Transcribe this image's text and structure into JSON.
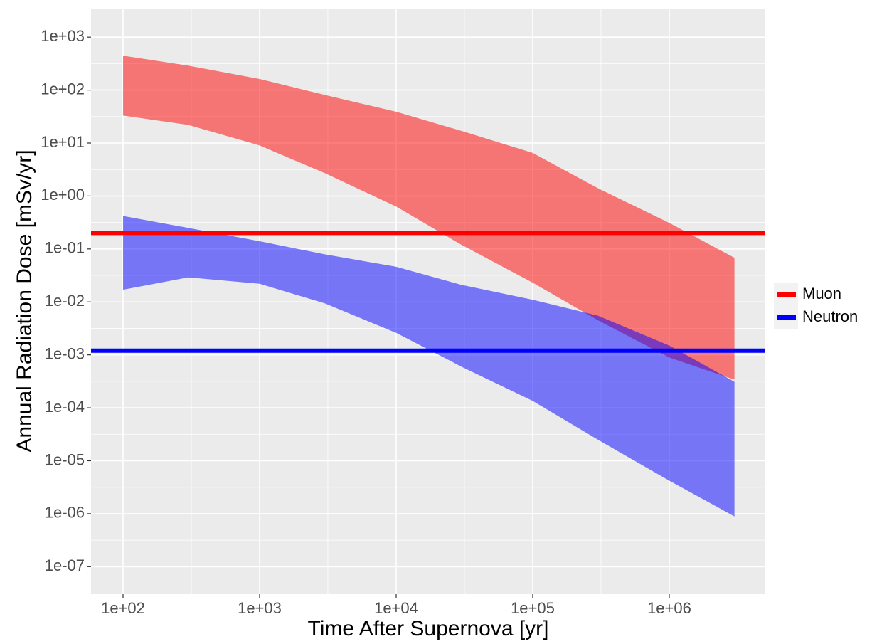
{
  "chart_data": {
    "type": "ribbon",
    "x_label": "Time After Supernova [yr]",
    "y_label": "Annual Radiation Dose [mSv/yr]",
    "x": [
      100,
      300,
      1000,
      3000,
      10000,
      30000,
      100000,
      300000,
      1000000,
      3000000
    ],
    "series": [
      {
        "name": "Muon",
        "color": "#ff0000",
        "lower": [
          33,
          22,
          9,
          2.7,
          0.63,
          0.12,
          0.023,
          0.0045,
          0.00089,
          0.00034
        ],
        "upper": [
          447,
          290,
          162,
          81,
          39,
          17,
          6.5,
          1.4,
          0.31,
          0.068
        ],
        "hline": 0.2
      },
      {
        "name": "Neutron",
        "color": "#0000ff",
        "lower": [
          0.017,
          0.029,
          0.022,
          0.0094,
          0.0026,
          0.0006,
          0.000135,
          2.5e-05,
          4.2e-06,
          8.9e-07
        ],
        "upper": [
          0.42,
          0.25,
          0.14,
          0.079,
          0.046,
          0.021,
          0.011,
          0.0055,
          0.0015,
          0.00031
        ],
        "hline": 0.0012
      }
    ],
    "x_log": true,
    "y_log": true,
    "xlim": [
      58.3,
      5050000
    ],
    "ylim": [
      3.02e-08,
      3467
    ],
    "xticks": [
      {
        "value": 100,
        "label": "1e+02"
      },
      {
        "value": 1000,
        "label": "1e+03"
      },
      {
        "value": 10000,
        "label": "1e+04"
      },
      {
        "value": 100000,
        "label": "1e+05"
      },
      {
        "value": 1000000,
        "label": "1e+06"
      }
    ],
    "yticks": [
      {
        "value": 1e-07,
        "label": "1e-07"
      },
      {
        "value": 1e-06,
        "label": "1e-06"
      },
      {
        "value": 1e-05,
        "label": "1e-05"
      },
      {
        "value": 0.0001,
        "label": "1e-04"
      },
      {
        "value": 0.001,
        "label": "1e-03"
      },
      {
        "value": 0.01,
        "label": "1e-02"
      },
      {
        "value": 0.1,
        "label": "1e-01"
      },
      {
        "value": 1,
        "label": "1e+00"
      },
      {
        "value": 10,
        "label": "1e+01"
      },
      {
        "value": 100,
        "label": "1e+02"
      },
      {
        "value": 1000,
        "label": "1e+03"
      }
    ],
    "grid": true,
    "ribbon_opacity": 0.5,
    "legend": "right"
  }
}
